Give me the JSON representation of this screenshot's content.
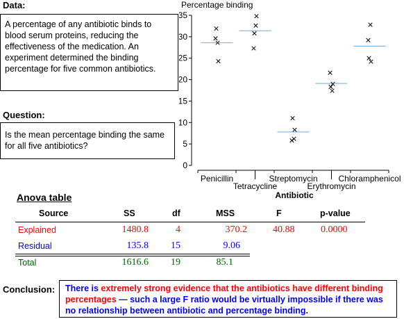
{
  "data_label": "Data:",
  "data_text": "A percentage of any antibiotic binds to blood serum proteins, reducing the effectiveness of the medication. An experiment determined the binding percentage for five common antibiotics.",
  "question_label": "Question:",
  "question_text": "Is the mean percentage binding the same for all five antibiotics?",
  "anova": {
    "title": "Anova table",
    "headers": [
      "Source",
      "SS",
      "df",
      "MSS",
      "F",
      "p-value"
    ],
    "explained": {
      "label": "Explained",
      "ss": "1480.8",
      "df": "4",
      "mss": "370.2",
      "f": "40.88",
      "p": "0.0000"
    },
    "residual": {
      "label": "Residual",
      "ss": "135.8",
      "df": "15",
      "mss": "9.06"
    },
    "total": {
      "label": "Total",
      "ss": "1616.6",
      "df": "19",
      "mss": "85.1"
    }
  },
  "conclusion_label": "Conclusion:",
  "conclusion": {
    "part1": "There is ",
    "part2": "extremely strong evidence that the antibiotics have different binding percentages",
    "part3": " — such a large F ratio would be virtually impossible if there was no relationship between antibiotic and percentage binding."
  },
  "colors": {
    "explained": "#ff0000",
    "residual": "#0000ff",
    "total": "#006400",
    "mean_line": "#8ab8e0"
  },
  "chart_data": {
    "type": "scatter",
    "ylabel": "Percentage binding",
    "xlabel": "Antibiotic",
    "ylim": [
      0,
      35
    ],
    "yticks": [
      0,
      5,
      10,
      15,
      20,
      25,
      30,
      35
    ],
    "categories": [
      "Penicillin",
      "Tetracycline",
      "Streptomycin",
      "Erythromycin",
      "Chloramphenicol"
    ],
    "points": [
      [
        29.6,
        28.6,
        31.9,
        24.3
      ],
      [
        27.3,
        32.6,
        30.8,
        34.8
      ],
      [
        5.8,
        6.2,
        11.0,
        8.3
      ],
      [
        21.6,
        17.4,
        18.3,
        19.0
      ],
      [
        29.2,
        32.8,
        25.0,
        24.2
      ]
    ],
    "means": [
      28.6,
      31.4,
      7.8,
      19.1,
      27.8
    ]
  }
}
